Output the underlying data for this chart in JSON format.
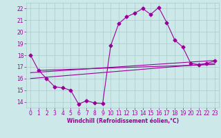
{
  "xlabel": "Windchill (Refroidissement éolien,°C)",
  "bg_color": "#cce8e8",
  "line_color": "#990099",
  "grid_color": "#aacccc",
  "x_ticks": [
    0,
    1,
    2,
    3,
    4,
    5,
    6,
    7,
    8,
    9,
    10,
    11,
    12,
    13,
    14,
    15,
    16,
    17,
    18,
    19,
    20,
    21,
    22,
    23
  ],
  "y_ticks": [
    14,
    15,
    16,
    17,
    18,
    19,
    20,
    21,
    22
  ],
  "ylim": [
    13.5,
    22.5
  ],
  "xlim": [
    -0.5,
    23.5
  ],
  "main_line": {
    "x": [
      0,
      1,
      2,
      3,
      4,
      5,
      6,
      7,
      8,
      9,
      10,
      11,
      12,
      13,
      14,
      15,
      16,
      17,
      18,
      19,
      20,
      21,
      22,
      23
    ],
    "y": [
      18.0,
      16.7,
      16.0,
      15.3,
      15.2,
      15.0,
      13.8,
      14.1,
      13.9,
      13.85,
      18.8,
      20.7,
      21.3,
      21.6,
      22.0,
      21.5,
      22.1,
      20.8,
      19.3,
      18.7,
      17.3,
      17.2,
      17.3,
      17.5
    ]
  },
  "trend_lines": [
    {
      "x": [
        0,
        23
      ],
      "y": [
        16.0,
        17.3
      ]
    },
    {
      "x": [
        0,
        23
      ],
      "y": [
        16.5,
        17.55
      ]
    },
    {
      "x": [
        1,
        23
      ],
      "y": [
        16.7,
        17.2
      ]
    }
  ],
  "tick_fontsize": 5.5,
  "xlabel_fontsize": 5.5,
  "marker_size": 2.5,
  "line_width": 0.8
}
